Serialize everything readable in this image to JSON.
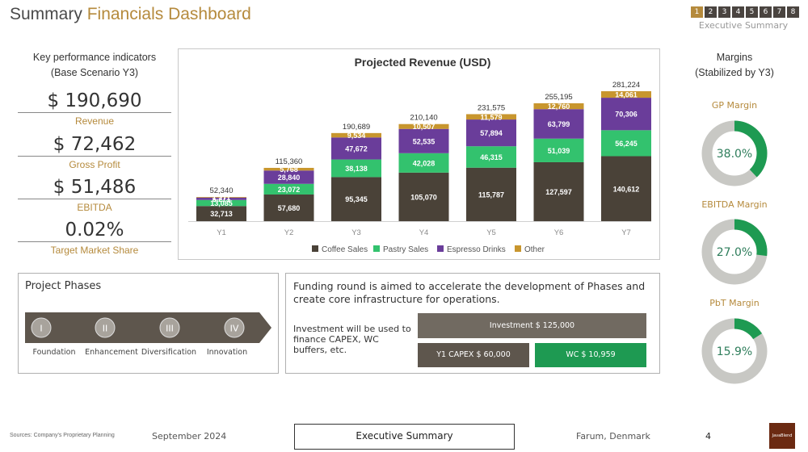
{
  "header": {
    "title_part1": "Summary",
    "title_part2": "Financials Dashboard",
    "pages": [
      "1",
      "2",
      "3",
      "4",
      "5",
      "6",
      "7",
      "8"
    ],
    "active_page": "1",
    "section": "Executive Summary"
  },
  "kpis": {
    "heading_line1": "Key performance indicators",
    "heading_line2": "(Base Scenario Y3)",
    "items": [
      {
        "value": "$ 190,690",
        "label": "Revenue"
      },
      {
        "value": "$ 72,462",
        "label": "Gross Profit"
      },
      {
        "value": "$ 51,486",
        "label": "EBITDA"
      },
      {
        "value": "0.02%",
        "label": "Target Market Share"
      }
    ]
  },
  "chart_data": {
    "type": "bar",
    "stacked": true,
    "title": "Projected Revenue (USD)",
    "categories": [
      "Y1",
      "Y2",
      "Y3",
      "Y4",
      "Y5",
      "Y6",
      "Y7"
    ],
    "series": [
      {
        "name": "Coffee Sales",
        "color": "#4a4238",
        "values": [
          32713,
          57680,
          95345,
          105070,
          115787,
          127597,
          140612
        ]
      },
      {
        "name": "Pastry Sales",
        "color": "#33c26e",
        "values": [
          13085,
          23072,
          38138,
          42028,
          46315,
          51039,
          56245
        ]
      },
      {
        "name": "Espresso Drinks",
        "color": "#6a3d9a",
        "values": [
          5271,
          28840,
          47672,
          52535,
          57894,
          63799,
          70306
        ]
      },
      {
        "name": "Other",
        "color": "#c8962e",
        "values": [
          1271,
          5768,
          9534,
          10507,
          11579,
          12760,
          14061
        ]
      }
    ],
    "totals": [
      52340,
      115360,
      190689,
      210140,
      231575,
      255195,
      281224
    ],
    "value_labels": {
      "Coffee Sales": [
        "32,713",
        "57,680",
        "95,345",
        "105,070",
        "115,787",
        "127,597",
        "140,612"
      ],
      "Pastry Sales": [
        "13,085",
        "23,072",
        "38,138",
        "42,028",
        "46,315",
        "51,039",
        "56,245"
      ],
      "Espresso Drinks": [
        "5,271",
        "28,840",
        "47,672",
        "52,535",
        "57,894",
        "63,799",
        "70,306"
      ],
      "Other": [
        "1,271",
        "5,768",
        "9,534",
        "10,507",
        "11,579",
        "12,760",
        "14,061"
      ]
    },
    "total_labels": [
      "52,340",
      "115,360",
      "190,689",
      "210,140",
      "231,575",
      "255,195",
      "281,224"
    ],
    "ylim": [
      0,
      300000
    ],
    "legend_position": "bottom"
  },
  "margins": {
    "heading_line1": "Margins",
    "heading_line2": "(Stabilized by Y3)",
    "items": [
      {
        "label": "GP Margin",
        "text": "38.0%",
        "fraction": 0.38
      },
      {
        "label": "EBITDA Margin",
        "text": "27.0%",
        "fraction": 0.27
      },
      {
        "label": "PbT Margin",
        "text": "15.9%",
        "fraction": 0.159
      }
    ],
    "color_fill": "#1e9a52",
    "color_track": "#c8c8c4"
  },
  "phases": {
    "title": "Project Phases",
    "items": [
      {
        "numeral": "I",
        "label": "Foundation"
      },
      {
        "numeral": "II",
        "label": "Enhancement"
      },
      {
        "numeral": "III",
        "label": "Diversification"
      },
      {
        "numeral": "IV",
        "label": "Innovation"
      }
    ]
  },
  "funding": {
    "text": "Funding round is aimed to accelerate the development of Phases and create core infrastructure for operations.",
    "note": "Investment will be used to finance CAPEX, WC buffers, etc.",
    "investment": "Investment $ 125,000",
    "capex": "Y1 CAPEX $ 60,000",
    "wc": "WC $ 10,959"
  },
  "footer": {
    "source": "Sources: Company's Proprietary Planning",
    "date": "September 2024",
    "section": "Executive Summary",
    "location": "Farum, Denmark",
    "page": "4",
    "logo_text": "JavaBlend"
  }
}
